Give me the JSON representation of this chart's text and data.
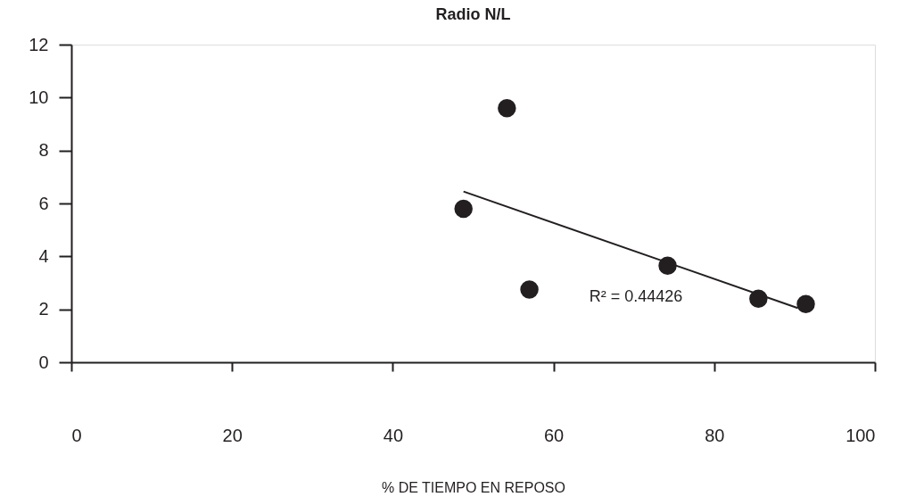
{
  "chart_data": {
    "type": "scatter",
    "title": "Radio N/L",
    "xlabel": "% DE TIEMPO EN REPOSO",
    "xlim": [
      0,
      100
    ],
    "xticks": [
      0,
      20,
      40,
      60,
      80,
      100
    ],
    "ylim": [
      0,
      12
    ],
    "yticks": [
      0,
      2,
      4,
      6,
      8,
      10,
      12
    ],
    "series": [
      {
        "marker": "circle",
        "color": "#231f20",
        "x": [
          48.8,
          54.2,
          57.0,
          74.2,
          85.5,
          91.4
        ],
        "values": [
          5.8,
          9.6,
          2.75,
          3.65,
          2.4,
          2.2
        ]
      },
      {
        "type": "line",
        "color": "#231f20",
        "x": [
          48.8,
          90.4
        ],
        "values": [
          6.45,
          2.05
        ]
      }
    ],
    "annotations": [
      "R² = 0.44426"
    ]
  }
}
